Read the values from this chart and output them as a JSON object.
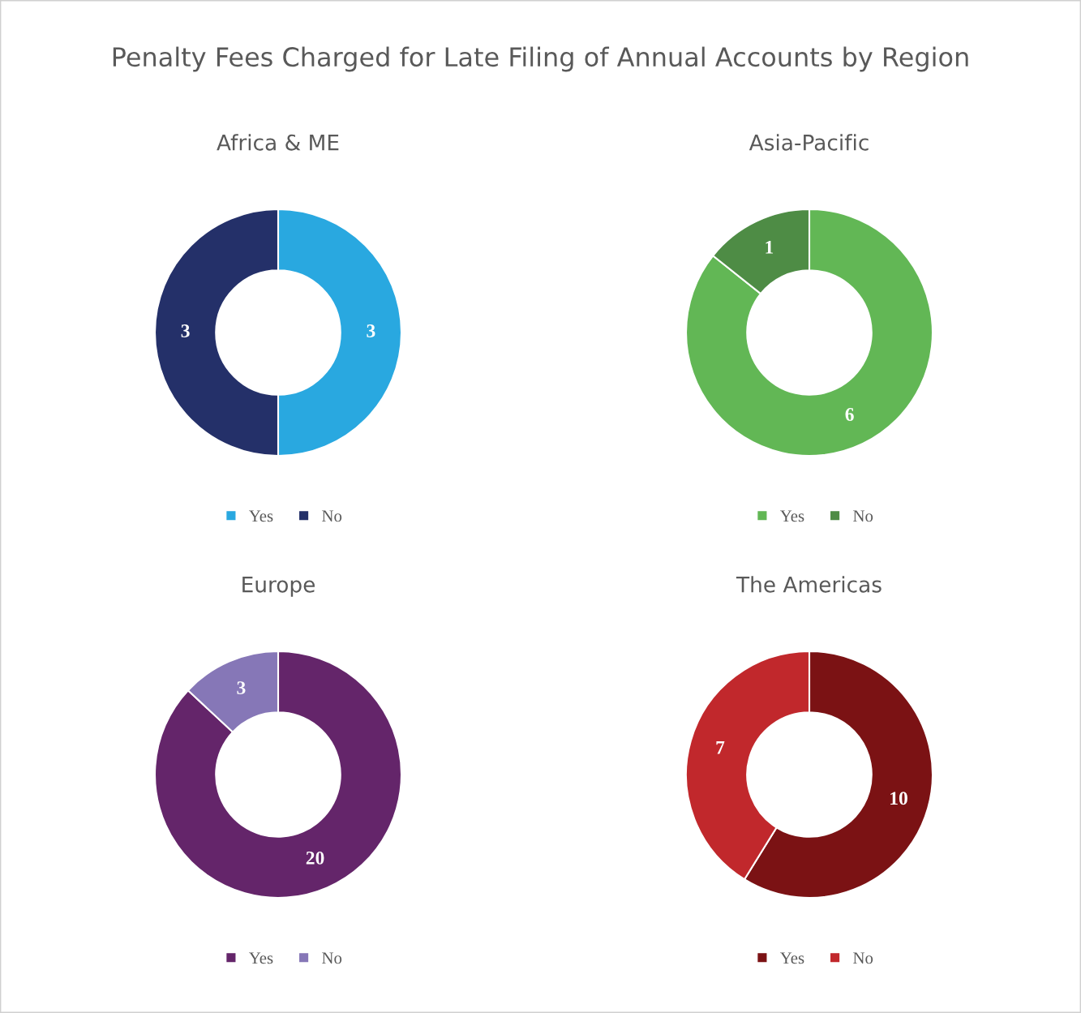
{
  "chart_data": [
    {
      "type": "donut",
      "title": "Africa & ME",
      "annotations": [
        "Penalty Fees Charged for Late Filing of Annual Accounts by Region"
      ],
      "categories": [
        "Yes",
        "No"
      ],
      "values": [
        3,
        3
      ],
      "colors": [
        "#29a8e0",
        "#243069"
      ],
      "data_labels": true,
      "legend": "bottom"
    },
    {
      "type": "donut",
      "title": "Asia-Pacific",
      "categories": [
        "Yes",
        "No"
      ],
      "values": [
        6,
        1
      ],
      "colors": [
        "#62b755",
        "#4e8c45"
      ],
      "data_labels": true,
      "legend": "bottom"
    },
    {
      "type": "donut",
      "title": "Europe",
      "categories": [
        "Yes",
        "No"
      ],
      "values": [
        20,
        3
      ],
      "colors": [
        "#64256a",
        "#8677b7"
      ],
      "data_labels": true,
      "legend": "bottom"
    },
    {
      "type": "donut",
      "title": "The Americas",
      "categories": [
        "Yes",
        "No"
      ],
      "values": [
        10,
        7
      ],
      "colors": [
        "#7b1214",
        "#c1282c"
      ],
      "data_labels": true,
      "legend": "bottom"
    }
  ]
}
